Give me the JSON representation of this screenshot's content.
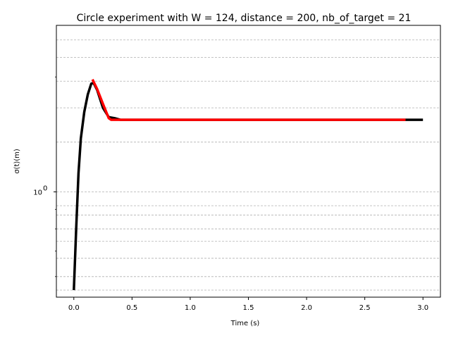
{
  "chart_data": {
    "type": "line",
    "title": "Circle experiment with W = 124, distance = 200, nb_of_target = 21",
    "xlabel": "Time (s)",
    "ylabel": "σ(t)(m)",
    "yscale": "log",
    "xlim": [
      -0.15,
      3.15
    ],
    "ylim": [
      0.53,
      2.73
    ],
    "grid": "y-major-and-minor, dashed",
    "x_ticks": [
      0.0,
      0.5,
      1.0,
      1.5,
      2.0,
      2.5,
      3.0
    ],
    "x_tick_labels": [
      "0.0",
      "0.5",
      "1.0",
      "1.5",
      "2.0",
      "2.5",
      "3.0"
    ],
    "y_major_ticks": [
      1.0
    ],
    "y_major_tick_labels": [
      "10",
      "0"
    ],
    "y_minor_ticks": [
      0.6,
      0.7,
      0.8,
      0.9,
      2.0,
      3.0,
      4.0
    ],
    "grid_lines_y": [
      0.553,
      0.6,
      0.67,
      0.742,
      0.8,
      0.87,
      0.92,
      1.0,
      1.35,
      1.66,
      1.95,
      2.25,
      2.5
    ],
    "series": [
      {
        "color": "#000000",
        "x": [
          0.0,
          0.02,
          0.04,
          0.06,
          0.09,
          0.12,
          0.15,
          0.17,
          0.2,
          0.25,
          0.3,
          0.35,
          0.4,
          3.0
        ],
        "y": [
          0.553,
          0.8,
          1.12,
          1.38,
          1.62,
          1.8,
          1.92,
          1.93,
          1.85,
          1.66,
          1.57,
          1.56,
          1.545,
          1.545
        ]
      },
      {
        "color": "#ff0000",
        "x": [
          0.16,
          0.2,
          0.25,
          0.3,
          0.32,
          2.85
        ],
        "y": [
          1.97,
          1.86,
          1.7,
          1.56,
          1.545,
          1.545
        ]
      }
    ]
  }
}
